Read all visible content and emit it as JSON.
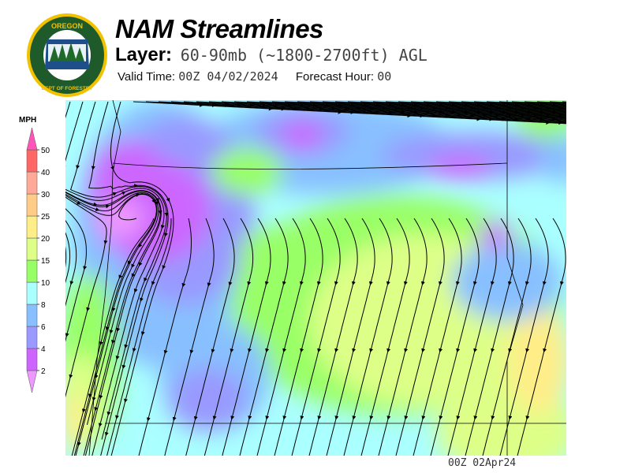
{
  "logo": {
    "text_top": "OREGON",
    "text_bottom": "DEPARTMENT OF FORESTRY"
  },
  "header": {
    "title": "NAM Streamlines",
    "layer_label": "Layer:",
    "layer_value": "60-90mb (~1800-2700ft) AGL",
    "valid_label": "Valid Time:",
    "valid_value": "00Z 04/02/2024",
    "forecast_label": "Forecast Hour:",
    "forecast_value": "00"
  },
  "legend": {
    "unit": "MPH",
    "ticks": [
      "2",
      "4",
      "6",
      "8",
      "10",
      "15",
      "20",
      "25",
      "30",
      "40",
      "50"
    ],
    "colors": {
      "below_2": "#ee99ff",
      "2-4": "#cc66ff",
      "4-6": "#9999ff",
      "6-8": "#88c0ff",
      "8-10": "#aaffff",
      "10-15": "#99ff66",
      "15-20": "#ddff88",
      "20-25": "#ffee88",
      "25-30": "#ffcc88",
      "30-40": "#ffaa99",
      "40-50": "#ff6666",
      "above_50": "#ff55bb"
    }
  },
  "footer": {
    "stamp": "00Z 02Apr24"
  }
}
